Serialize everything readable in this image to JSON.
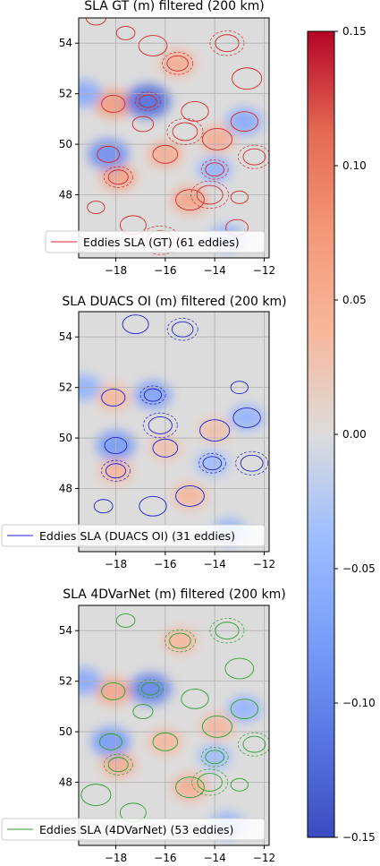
{
  "chart_data": [
    {
      "type": "heatmap",
      "title": "SLA GT (m) filtered (200 km)",
      "xlim": [
        -19.5,
        -11.8
      ],
      "ylim": [
        45.5,
        55
      ],
      "xticks": [
        -18,
        -16,
        -14,
        -12
      ],
      "yticks": [
        48,
        50,
        52,
        54
      ],
      "xtick_labels": [
        "−18",
        "−16",
        "−14",
        "−12"
      ],
      "ytick_labels": [
        "48",
        "50",
        "52",
        "54"
      ],
      "grid": true,
      "legend": {
        "label": "Eddies SLA (GT) (61 eddies)",
        "color": "#d62728",
        "placement": "lower-left"
      },
      "contour_color": "#d62728",
      "cyclonic_lows": [
        [
          -16.7,
          51.7,
          -0.12
        ],
        [
          -18.3,
          49.6,
          -0.09
        ],
        [
          -12.8,
          50.9,
          -0.06
        ],
        [
          -14.0,
          49.0,
          -0.05
        ],
        [
          -19.3,
          52.0,
          -0.06
        ],
        [
          -13.5,
          46.3,
          -0.05
        ]
      ],
      "anticyclonic_highs": [
        [
          -18.1,
          51.6,
          0.07
        ],
        [
          -15.0,
          47.8,
          0.06
        ],
        [
          -17.9,
          48.7,
          0.06
        ],
        [
          -16.0,
          49.6,
          0.05
        ],
        [
          -13.9,
          50.2,
          0.05
        ],
        [
          -15.5,
          53.2,
          0.05
        ]
      ],
      "eddy_contours": [
        [
          -16.7,
          51.7
        ],
        [
          -18.3,
          49.6
        ],
        [
          -12.8,
          50.9
        ],
        [
          -14.0,
          49.0
        ],
        [
          -18.1,
          51.6
        ],
        [
          -15.0,
          47.8
        ],
        [
          -17.9,
          48.7
        ],
        [
          -16.0,
          49.6
        ],
        [
          -13.9,
          50.2
        ],
        [
          -15.5,
          53.2
        ],
        [
          -17.3,
          46.8
        ],
        [
          -13.0,
          47.9
        ],
        [
          -12.4,
          49.5
        ],
        [
          -14.8,
          51.3
        ],
        [
          -17.6,
          54.4
        ],
        [
          -13.5,
          54.0
        ],
        [
          -16.5,
          53.9
        ],
        [
          -18.8,
          55.0
        ],
        [
          -15.2,
          50.5
        ],
        [
          -12.7,
          52.6
        ],
        [
          -16.9,
          50.8
        ],
        [
          -14.2,
          48.0
        ],
        [
          -18.8,
          47.5
        ],
        [
          -13.1,
          46.7
        ],
        [
          -16.2,
          46.2
        ]
      ]
    },
    {
      "type": "heatmap",
      "title": "SLA DUACS OI (m) filtered (200 km)",
      "xlim": [
        -19.5,
        -11.8
      ],
      "ylim": [
        45.5,
        55
      ],
      "xticks": [
        -18,
        -16,
        -14,
        -12
      ],
      "yticks": [
        48,
        50,
        52,
        54
      ],
      "xtick_labels": [
        "−18",
        "−16",
        "−14",
        "−12"
      ],
      "ytick_labels": [
        "48",
        "50",
        "52",
        "54"
      ],
      "grid": true,
      "legend": {
        "label": "Eddies SLA (DUACS OI) (31 eddies)",
        "color": "#1f1fd0",
        "placement": "lower-left"
      },
      "contour_color": "#1f1fd0",
      "cyclonic_lows": [
        [
          -16.5,
          51.7,
          -0.07
        ],
        [
          -18.0,
          49.7,
          -0.08
        ],
        [
          -12.7,
          50.8,
          -0.05
        ],
        [
          -14.1,
          49.0,
          -0.04
        ],
        [
          -19.3,
          52.0,
          -0.05
        ],
        [
          -13.4,
          46.3,
          -0.05
        ]
      ],
      "anticyclonic_highs": [
        [
          -18.1,
          51.6,
          0.04
        ],
        [
          -15.0,
          47.7,
          0.04
        ],
        [
          -18.0,
          48.7,
          0.04
        ],
        [
          -16.0,
          49.6,
          0.03
        ],
        [
          -14.0,
          50.3,
          0.03
        ]
      ],
      "eddy_contours": [
        [
          -16.5,
          51.7
        ],
        [
          -18.0,
          49.7
        ],
        [
          -12.7,
          50.8
        ],
        [
          -14.1,
          49.0
        ],
        [
          -18.1,
          51.6
        ],
        [
          -15.0,
          47.7
        ],
        [
          -18.0,
          48.7
        ],
        [
          -16.0,
          49.6
        ],
        [
          -14.0,
          50.3
        ],
        [
          -15.3,
          54.3
        ],
        [
          -17.2,
          54.5
        ],
        [
          -13.0,
          52.0
        ],
        [
          -12.5,
          49.0
        ],
        [
          -16.5,
          47.3
        ],
        [
          -18.5,
          47.3
        ],
        [
          -16.2,
          50.5
        ]
      ]
    },
    {
      "type": "heatmap",
      "title": "SLA 4DVarNet (m) filtered (200 km)",
      "xlim": [
        -19.5,
        -11.8
      ],
      "ylim": [
        45.5,
        55
      ],
      "xticks": [
        -18,
        -16,
        -14,
        -12
      ],
      "yticks": [
        48,
        50,
        52,
        54
      ],
      "xtick_labels": [
        "−18",
        "−16",
        "−14",
        "−12"
      ],
      "ytick_labels": [
        "48",
        "50",
        "52",
        "54"
      ],
      "grid": true,
      "legend": {
        "label": "Eddies SLA (4DVarNet) (53 eddies)",
        "color": "#2ca02c",
        "placement": "lower-left"
      },
      "contour_color": "#2ca02c",
      "cyclonic_lows": [
        [
          -16.6,
          51.7,
          -0.1
        ],
        [
          -18.2,
          49.6,
          -0.08
        ],
        [
          -12.8,
          50.9,
          -0.05
        ],
        [
          -14.0,
          49.0,
          -0.04
        ],
        [
          -19.3,
          52.0,
          -0.06
        ],
        [
          -13.5,
          46.3,
          -0.05
        ]
      ],
      "anticyclonic_highs": [
        [
          -18.1,
          51.6,
          0.06
        ],
        [
          -15.0,
          47.8,
          0.05
        ],
        [
          -17.9,
          48.7,
          0.05
        ],
        [
          -16.0,
          49.6,
          0.04
        ],
        [
          -13.9,
          50.2,
          0.04
        ],
        [
          -15.4,
          53.6,
          0.04
        ]
      ],
      "eddy_contours": [
        [
          -16.6,
          51.7
        ],
        [
          -18.2,
          49.6
        ],
        [
          -12.8,
          50.9
        ],
        [
          -14.0,
          49.0
        ],
        [
          -18.1,
          51.6
        ],
        [
          -15.0,
          47.8
        ],
        [
          -17.9,
          48.7
        ],
        [
          -16.0,
          49.6
        ],
        [
          -13.9,
          50.2
        ],
        [
          -15.4,
          53.6
        ],
        [
          -17.3,
          46.8
        ],
        [
          -13.0,
          47.9
        ],
        [
          -12.4,
          49.5
        ],
        [
          -14.8,
          51.3
        ],
        [
          -17.6,
          54.4
        ],
        [
          -13.5,
          54.0
        ],
        [
          -13.0,
          52.5
        ],
        [
          -16.9,
          50.8
        ],
        [
          -14.2,
          48.0
        ],
        [
          -18.8,
          47.5
        ]
      ]
    }
  ],
  "colorbar": {
    "colormap": "coolwarm",
    "vmin": -0.15,
    "vmax": 0.15,
    "ticks": [
      0.15,
      0.1,
      0.05,
      0.0,
      -0.05,
      -0.1,
      -0.15
    ],
    "tick_labels": [
      "0.15",
      "0.10",
      "0.05",
      "0.00",
      "−0.05",
      "−0.10",
      "−0.15"
    ]
  }
}
